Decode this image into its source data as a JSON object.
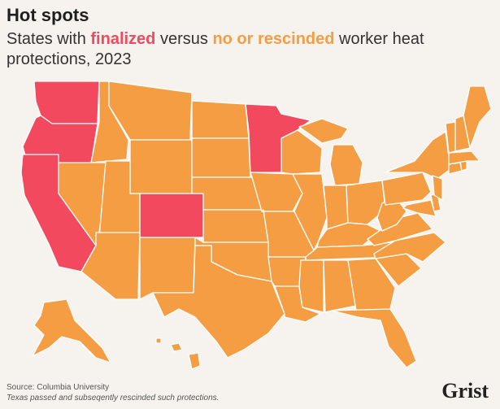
{
  "header": {
    "title": "Hot spots",
    "subtitle_parts": {
      "before": "States with ",
      "finalized": "finalized",
      "middle": " versus ",
      "none": "no or rescinded",
      "after": " worker heat protections, 2023"
    }
  },
  "colors": {
    "finalized": "#f2495f",
    "none": "#f59d43",
    "background": "#f6f3ee",
    "border": "#ffffff"
  },
  "map": {
    "finalized_states": [
      "Washington",
      "Oregon",
      "California",
      "Colorado",
      "Minnesota"
    ],
    "none_or_rescinded_states": [
      "Idaho",
      "Montana",
      "Wyoming",
      "Nevada",
      "Utah",
      "Arizona",
      "New Mexico",
      "North Dakota",
      "South Dakota",
      "Nebraska",
      "Kansas",
      "Oklahoma",
      "Texas",
      "Iowa",
      "Missouri",
      "Arkansas",
      "Louisiana",
      "Wisconsin",
      "Illinois",
      "Michigan",
      "Indiana",
      "Ohio",
      "Kentucky",
      "Tennessee",
      "Mississippi",
      "Alabama",
      "Georgia",
      "Florida",
      "South Carolina",
      "North Carolina",
      "Virginia",
      "West Virginia",
      "Pennsylvania",
      "New York",
      "Maryland",
      "Delaware",
      "New Jersey",
      "Connecticut",
      "Rhode Island",
      "Massachusetts",
      "Vermont",
      "New Hampshire",
      "Maine",
      "Alaska",
      "Hawaii"
    ]
  },
  "footer": {
    "source": "Source: Columbia University",
    "note": "Texas passed and subseqently rescinded such protections.",
    "logo": "Grist"
  }
}
